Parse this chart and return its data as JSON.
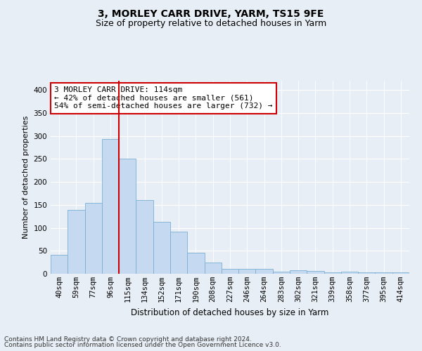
{
  "title1": "3, MORLEY CARR DRIVE, YARM, TS15 9FE",
  "title2": "Size of property relative to detached houses in Yarm",
  "xlabel": "Distribution of detached houses by size in Yarm",
  "ylabel": "Number of detached properties",
  "categories": [
    "40sqm",
    "59sqm",
    "77sqm",
    "96sqm",
    "115sqm",
    "134sqm",
    "152sqm",
    "171sqm",
    "190sqm",
    "208sqm",
    "227sqm",
    "246sqm",
    "264sqm",
    "283sqm",
    "302sqm",
    "321sqm",
    "339sqm",
    "358sqm",
    "377sqm",
    "395sqm",
    "414sqm"
  ],
  "values": [
    42,
    139,
    155,
    293,
    251,
    160,
    113,
    91,
    46,
    25,
    10,
    10,
    10,
    5,
    8,
    6,
    3,
    4,
    3,
    3,
    3
  ],
  "bar_color": "#c5d9f0",
  "bar_edge_color": "#7bafd4",
  "vline_x_index": 4,
  "vline_color": "#cc0000",
  "annotation_line1": "3 MORLEY CARR DRIVE: 114sqm",
  "annotation_line2": "← 42% of detached houses are smaller (561)",
  "annotation_line3": "54% of semi-detached houses are larger (732) →",
  "annotation_box_color": "#ffffff",
  "annotation_box_edge_color": "#cc0000",
  "ylim": [
    0,
    420
  ],
  "yticks": [
    0,
    50,
    100,
    150,
    200,
    250,
    300,
    350,
    400
  ],
  "background_color": "#e8eef5",
  "plot_background_color": "#e8eef5",
  "footer_line1": "Contains HM Land Registry data © Crown copyright and database right 2024.",
  "footer_line2": "Contains public sector information licensed under the Open Government Licence v3.0.",
  "title1_fontsize": 10,
  "title2_fontsize": 9,
  "xlabel_fontsize": 8.5,
  "ylabel_fontsize": 8,
  "tick_fontsize": 7.5,
  "annotation_fontsize": 8,
  "footer_fontsize": 6.5
}
